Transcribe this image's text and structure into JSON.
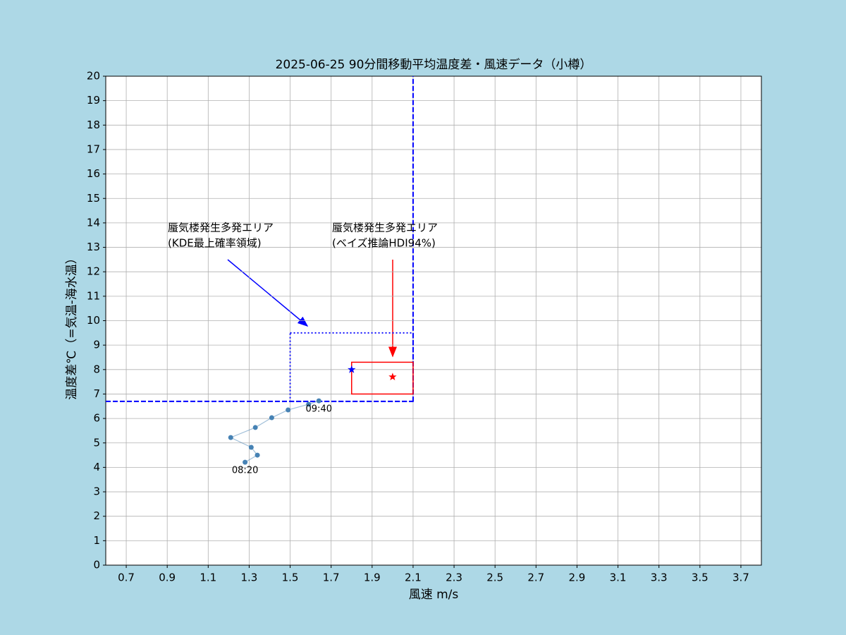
{
  "chart_data": {
    "type": "scatter",
    "title": "2025-06-25  90分間移動平均温度差・風速データ（小樽）",
    "xlabel": "風速 m/s",
    "ylabel": "温度差℃（=気温-海水温）",
    "xlim": [
      0.6,
      3.8
    ],
    "ylim": [
      0,
      20
    ],
    "xticks": [
      0.7,
      0.9,
      1.1,
      1.3,
      1.5,
      1.7,
      1.9,
      2.1,
      2.3,
      2.5,
      2.7,
      2.9,
      3.1,
      3.3,
      3.5,
      3.7
    ],
    "yticks": [
      0,
      1,
      2,
      3,
      4,
      5,
      6,
      7,
      8,
      9,
      10,
      11,
      12,
      13,
      14,
      15,
      16,
      17,
      18,
      19,
      20
    ],
    "grid": true,
    "series": [
      {
        "color": "#4682b4",
        "x": [
          1.28,
          1.34,
          1.31,
          1.21,
          1.33,
          1.41,
          1.49,
          1.59,
          1.64
        ],
        "values": [
          4.21,
          4.5,
          4.82,
          5.22,
          5.63,
          6.03,
          6.35,
          6.58,
          6.72
        ],
        "point_labels": [
          "08:20",
          null,
          null,
          null,
          null,
          null,
          null,
          null,
          "09:40"
        ]
      }
    ],
    "reference_lines": {
      "x": 2.1,
      "y": 6.7,
      "color": "#0000ff"
    },
    "regions": [
      {
        "xlim": [
          1.5,
          2.1
        ],
        "ylim": [
          6.7,
          9.5
        ],
        "color": "#0000ff",
        "style": "dotted",
        "annotation": [
          "蜃気楼発生多発エリア",
          "(KDE最上確率領域)"
        ]
      },
      {
        "xlim": [
          1.8,
          2.1
        ],
        "ylim": [
          7.0,
          8.3
        ],
        "color": "#ff0000",
        "style": "solid",
        "annotation": [
          "蜃気楼発生多発エリア",
          "(ベイズ推論HDI94%)"
        ]
      }
    ],
    "markers": [
      {
        "x": 1.8,
        "y": 8.0,
        "color": "#0000ff"
      },
      {
        "x": 2.0,
        "y": 7.7,
        "color": "#ff0000"
      }
    ]
  }
}
